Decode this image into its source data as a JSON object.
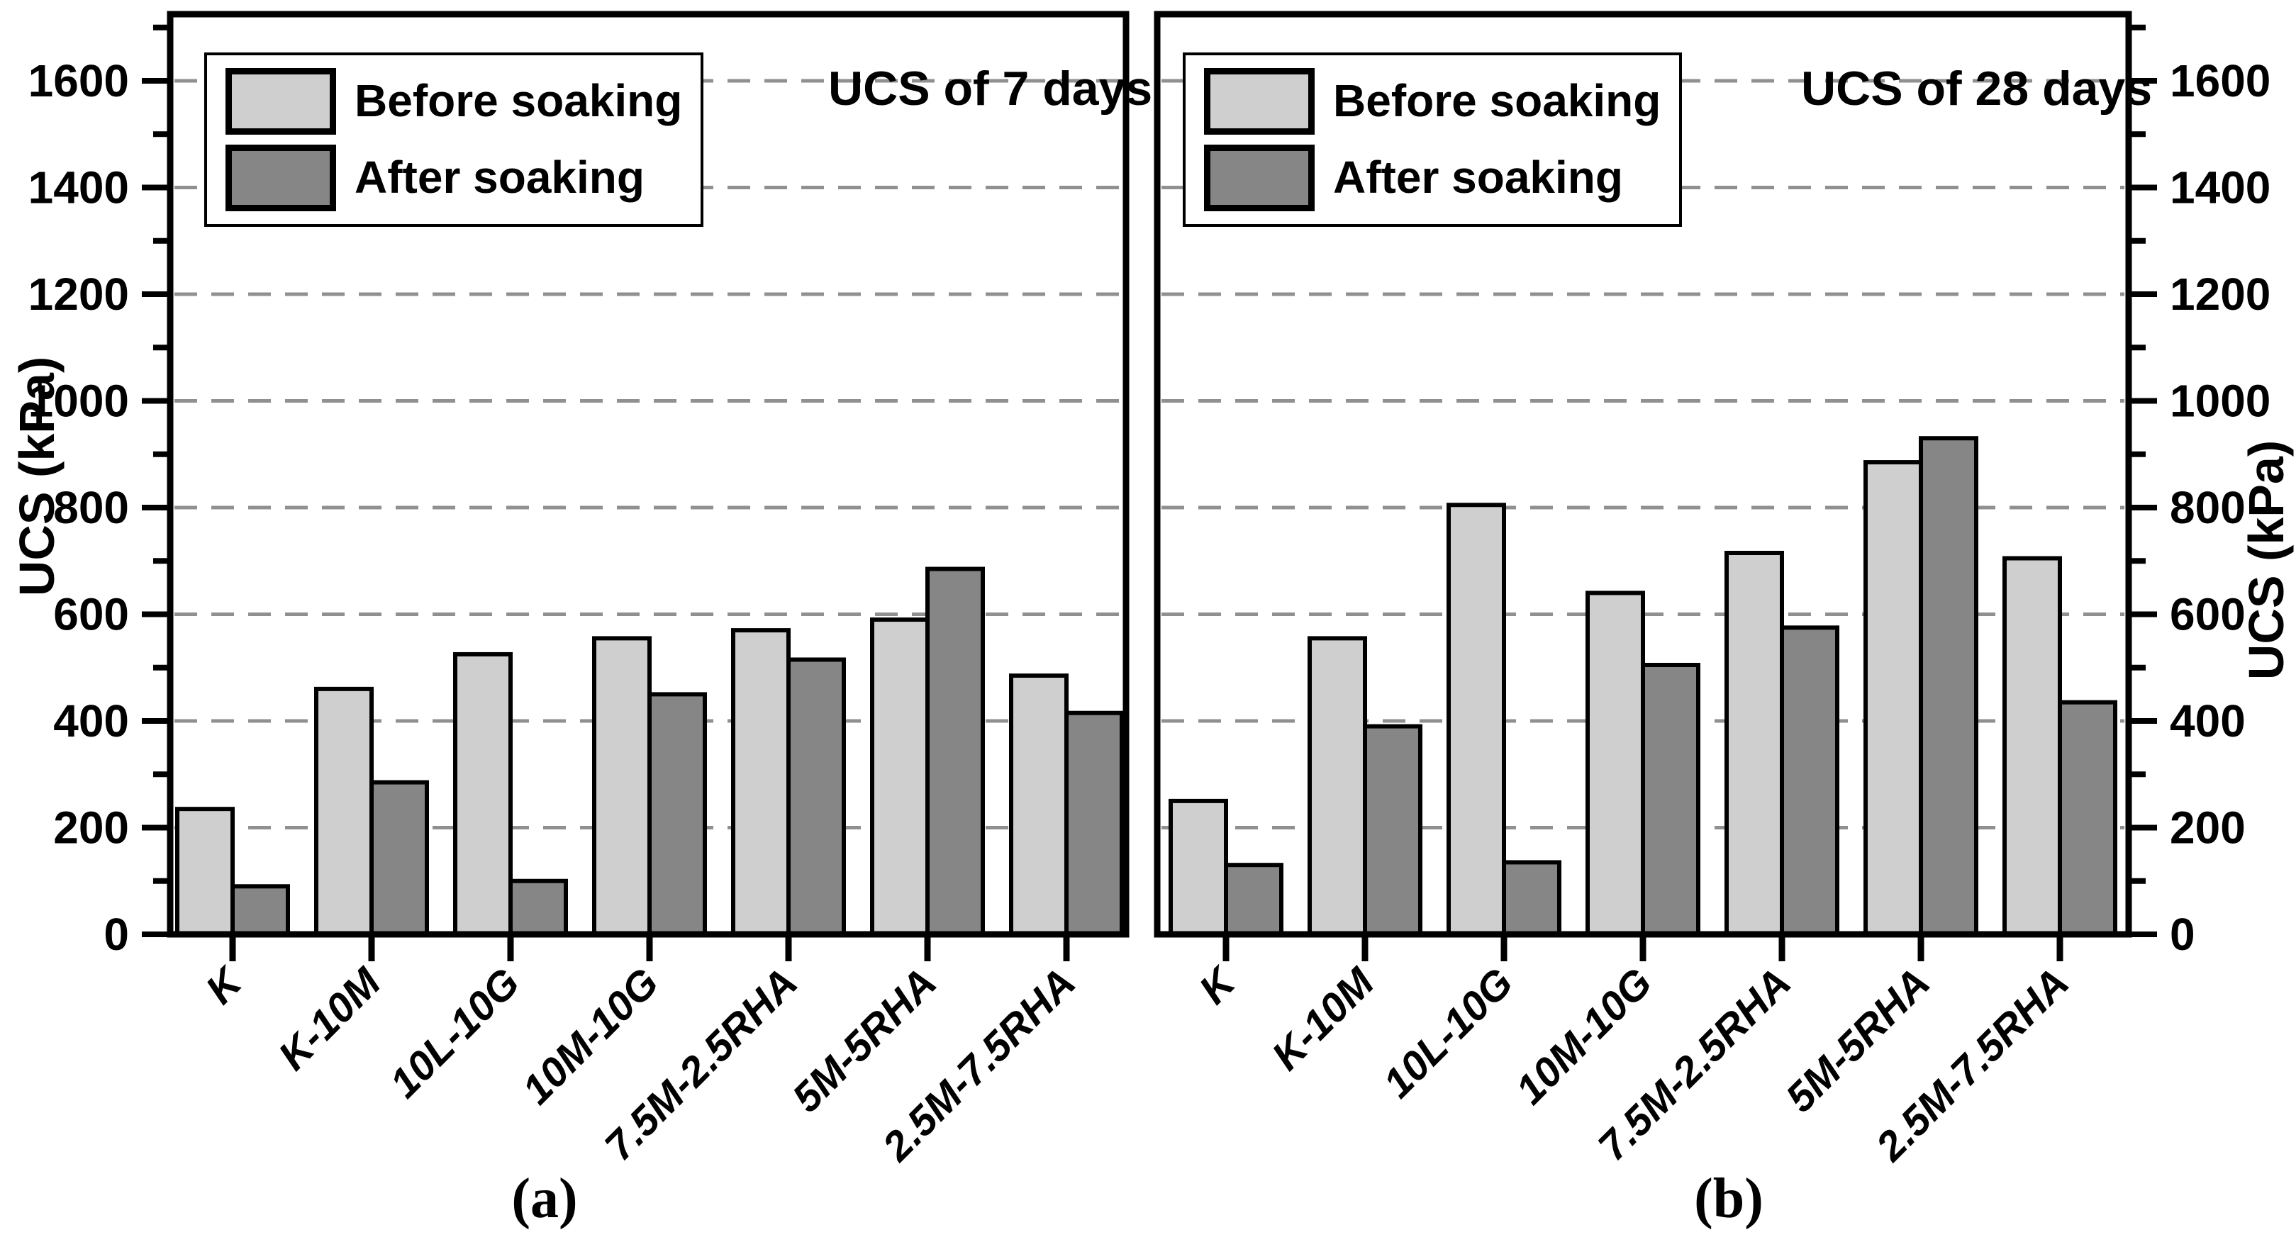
{
  "figure": {
    "left_axis_label": "UCS (kPa)",
    "right_axis_label": "UCS (kPa)",
    "colors": {
      "before": "#cfcfcf",
      "after": "#868686",
      "grid": "#909090",
      "edge": "#000000",
      "background": "#ffffff"
    },
    "panels": [
      {
        "title": "UCS of 7 days",
        "caption": "(a)"
      },
      {
        "title": "UCS of 28 days",
        "caption": "(b)"
      }
    ]
  },
  "chart_data": [
    {
      "type": "bar",
      "panel": "a",
      "title": "UCS of 7 days",
      "caption": "(a)",
      "categories": [
        "K",
        "K-10M",
        "10L-10G",
        "10M-10G",
        "7.5M-2.5RHA",
        "5M-5RHA",
        "2.5M-7.5RHA"
      ],
      "series": [
        {
          "name": "Before soaking",
          "values": [
            235,
            460,
            525,
            555,
            570,
            590,
            485
          ]
        },
        {
          "name": "After soaking",
          "values": [
            90,
            285,
            100,
            450,
            515,
            685,
            415
          ]
        }
      ],
      "xlabel": "",
      "ylabel": "UCS (kPa)",
      "ylim": [
        0,
        1725
      ],
      "yticks": [
        0,
        200,
        400,
        600,
        800,
        1000,
        1200,
        1400,
        1600
      ],
      "ytick_minor_step": 100,
      "grid": "horizontal-dashed-major",
      "legend_position": "top-left",
      "legend_entries": [
        "Before soaking",
        "After soaking"
      ]
    },
    {
      "type": "bar",
      "panel": "b",
      "title": "UCS of 28 days",
      "caption": "(b)",
      "categories": [
        "K",
        "K-10M",
        "10L-10G",
        "10M-10G",
        "7.5M-2.5RHA",
        "5M-5RHA",
        "2.5M-7.5RHA"
      ],
      "series": [
        {
          "name": "Before soaking",
          "values": [
            250,
            555,
            805,
            640,
            715,
            885,
            705
          ]
        },
        {
          "name": "After soaking",
          "values": [
            130,
            390,
            135,
            505,
            575,
            930,
            435
          ]
        }
      ],
      "xlabel": "",
      "ylabel": "UCS (kPa)",
      "ylim": [
        0,
        1725
      ],
      "yticks": [
        0,
        200,
        400,
        600,
        800,
        1000,
        1200,
        1400,
        1600
      ],
      "ytick_minor_step": 100,
      "grid": "horizontal-dashed-major",
      "legend_position": "top-left",
      "legend_entries": [
        "Before soaking",
        "After soaking"
      ]
    }
  ]
}
